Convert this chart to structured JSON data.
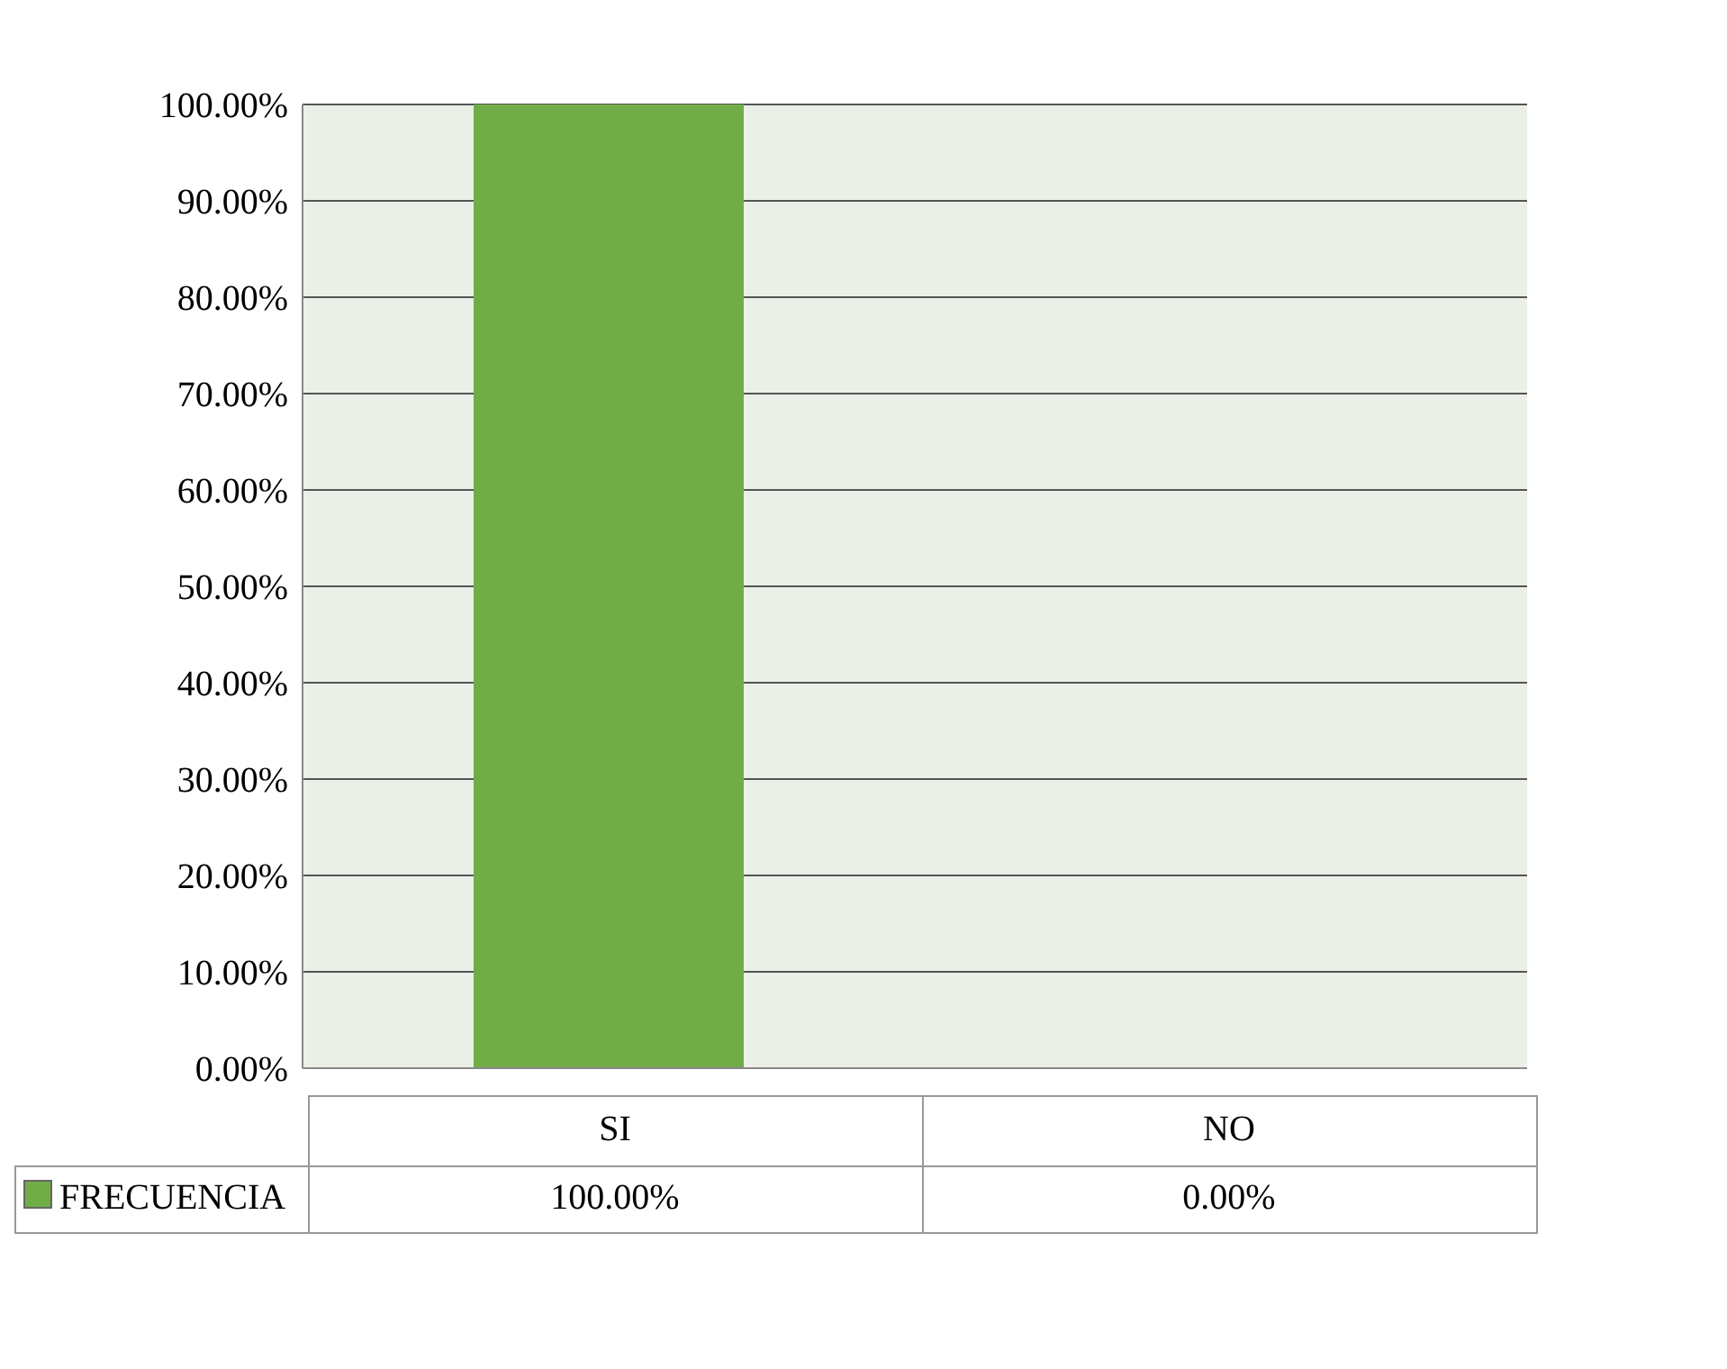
{
  "chart_data": {
    "type": "bar",
    "categories": [
      "SI",
      "NO"
    ],
    "series": [
      {
        "name": "FRECUENCIA",
        "color": "#70ad47",
        "values": [
          100,
          0
        ],
        "value_labels": [
          "100.00%",
          "0.00%"
        ]
      }
    ],
    "ylim": [
      0,
      100
    ],
    "yticks": [
      {
        "value": 0,
        "label": "0.00%"
      },
      {
        "value": 10,
        "label": "10.00%"
      },
      {
        "value": 20,
        "label": "20.00%"
      },
      {
        "value": 30,
        "label": "30.00%"
      },
      {
        "value": 40,
        "label": "40.00%"
      },
      {
        "value": 50,
        "label": "50.00%"
      },
      {
        "value": 60,
        "label": "60.00%"
      },
      {
        "value": 70,
        "label": "70.00%"
      },
      {
        "value": 80,
        "label": "80.00%"
      },
      {
        "value": 90,
        "label": "90.00%"
      },
      {
        "value": 100,
        "label": "100.00%"
      }
    ],
    "grid": "y",
    "legend": "bottom left"
  }
}
